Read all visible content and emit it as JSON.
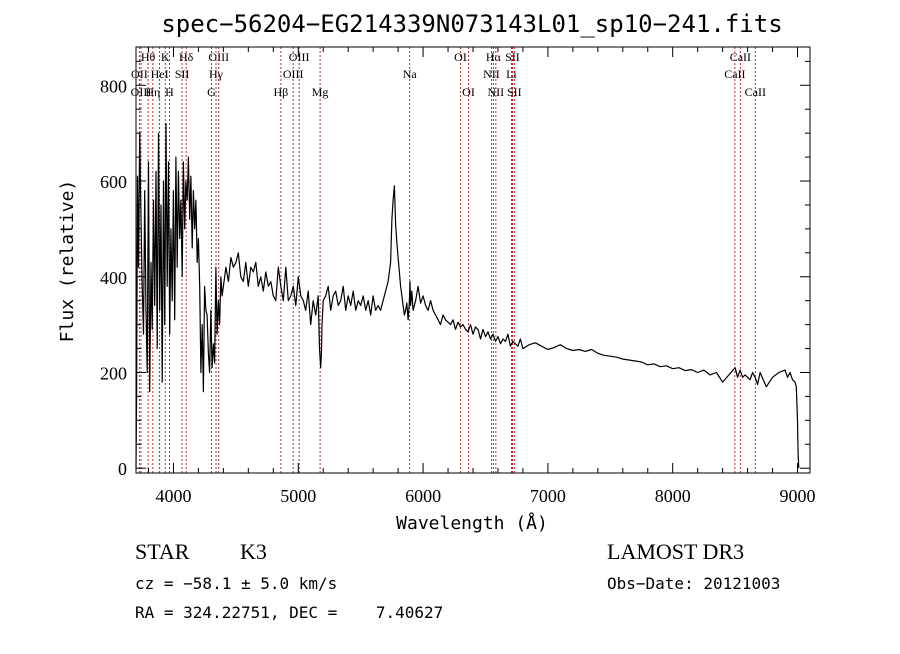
{
  "chart_data": {
    "type": "line",
    "title": "spec−56204−EG214339N073143L01_sp10−241.fits",
    "xlabel": "Wavelength (Å)",
    "ylabel": "Flux (relative)",
    "xlim": [
      3700,
      9100
    ],
    "ylim": [
      -10,
      880
    ],
    "xticks": [
      4000,
      5000,
      6000,
      7000,
      8000,
      9000
    ],
    "yticks": [
      0,
      200,
      400,
      600,
      800
    ],
    "series": [
      {
        "name": "spectrum",
        "x": [
          3700,
          3705,
          3712,
          3720,
          3730,
          3740,
          3750,
          3760,
          3770,
          3780,
          3790,
          3800,
          3810,
          3820,
          3830,
          3840,
          3850,
          3860,
          3870,
          3880,
          3890,
          3900,
          3910,
          3920,
          3930,
          3940,
          3950,
          3960,
          3970,
          3980,
          3990,
          4000,
          4010,
          4020,
          4030,
          4040,
          4050,
          4060,
          4070,
          4080,
          4090,
          4100,
          4110,
          4120,
          4130,
          4140,
          4150,
          4160,
          4170,
          4180,
          4190,
          4200,
          4210,
          4220,
          4230,
          4240,
          4250,
          4260,
          4270,
          4280,
          4290,
          4300,
          4310,
          4320,
          4330,
          4340,
          4350,
          4360,
          4370,
          4380,
          4390,
          4400,
          4420,
          4440,
          4460,
          4480,
          4500,
          4520,
          4540,
          4560,
          4580,
          4600,
          4620,
          4640,
          4660,
          4680,
          4700,
          4720,
          4740,
          4760,
          4780,
          4800,
          4820,
          4840,
          4860,
          4880,
          4900,
          4920,
          4940,
          4960,
          4980,
          5000,
          5020,
          5040,
          5060,
          5080,
          5100,
          5120,
          5140,
          5160,
          5170,
          5180,
          5185,
          5190,
          5200,
          5220,
          5240,
          5260,
          5280,
          5300,
          5320,
          5340,
          5360,
          5380,
          5400,
          5420,
          5440,
          5460,
          5480,
          5500,
          5520,
          5540,
          5560,
          5580,
          5600,
          5620,
          5640,
          5660,
          5680,
          5700,
          5720,
          5740,
          5750,
          5760,
          5770,
          5780,
          5790,
          5800,
          5810,
          5820,
          5830,
          5840,
          5850,
          5860,
          5870,
          5880,
          5890,
          5895,
          5900,
          5910,
          5920,
          5940,
          5960,
          5980,
          6000,
          6020,
          6040,
          6060,
          6080,
          6100,
          6120,
          6140,
          6160,
          6180,
          6200,
          6220,
          6240,
          6260,
          6280,
          6300,
          6320,
          6340,
          6360,
          6380,
          6400,
          6420,
          6440,
          6460,
          6480,
          6500,
          6520,
          6540,
          6560,
          6580,
          6600,
          6620,
          6640,
          6660,
          6680,
          6700,
          6720,
          6740,
          6760,
          6780,
          6800,
          6850,
          6900,
          6950,
          7000,
          7050,
          7100,
          7150,
          7200,
          7250,
          7300,
          7350,
          7400,
          7450,
          7500,
          7550,
          7600,
          7650,
          7700,
          7750,
          7800,
          7850,
          7900,
          7950,
          8000,
          8050,
          8100,
          8150,
          8200,
          8250,
          8300,
          8350,
          8400,
          8450,
          8500,
          8520,
          8540,
          8560,
          8580,
          8600,
          8620,
          8640,
          8660,
          8680,
          8700,
          8750,
          8800,
          8850,
          8900,
          8920,
          8940,
          8960,
          8980,
          8990,
          9000,
          9005,
          9010
        ],
        "y": [
          0,
          150,
          610,
          420,
          700,
          520,
          380,
          280,
          580,
          330,
          200,
          640,
          160,
          430,
          290,
          560,
          340,
          620,
          250,
          700,
          330,
          550,
          180,
          600,
          300,
          720,
          380,
          640,
          280,
          500,
          350,
          580,
          310,
          650,
          420,
          620,
          480,
          560,
          400,
          640,
          500,
          600,
          560,
          650,
          520,
          610,
          460,
          580,
          500,
          560,
          430,
          480,
          380,
          200,
          300,
          160,
          380,
          330,
          320,
          240,
          200,
          330,
          210,
          260,
          220,
          420,
          280,
          350,
          300,
          400,
          360,
          380,
          420,
          390,
          440,
          420,
          430,
          450,
          400,
          390,
          430,
          380,
          420,
          410,
          430,
          380,
          400,
          370,
          410,
          380,
          390,
          360,
          350,
          420,
          380,
          350,
          420,
          350,
          360,
          380,
          340,
          400,
          360,
          350,
          330,
          370,
          300,
          350,
          320,
          360,
          250,
          210,
          240,
          300,
          350,
          360,
          380,
          330,
          360,
          370,
          340,
          350,
          380,
          330,
          360,
          340,
          370,
          330,
          350,
          340,
          360,
          330,
          350,
          320,
          360,
          330,
          340,
          330,
          350,
          370,
          390,
          430,
          520,
          560,
          590,
          510,
          470,
          440,
          410,
          380,
          360,
          340,
          320,
          330,
          345,
          310,
          345,
          390,
          340,
          370,
          330,
          350,
          380,
          345,
          360,
          340,
          330,
          350,
          330,
          320,
          310,
          300,
          320,
          310,
          305,
          300,
          310,
          290,
          305,
          295,
          300,
          290,
          285,
          300,
          280,
          295,
          290,
          270,
          290,
          275,
          285,
          270,
          280,
          265,
          275,
          260,
          270,
          265,
          280,
          255,
          265,
          260,
          255,
          270,
          250,
          258,
          262,
          255,
          248,
          252,
          258,
          250,
          246,
          248,
          244,
          248,
          240,
          236,
          234,
          232,
          228,
          226,
          224,
          222,
          216,
          218,
          212,
          214,
          208,
          210,
          204,
          206,
          200,
          205,
          195,
          200,
          180,
          195,
          210,
          190,
          205,
          190,
          195,
          190,
          185,
          200,
          190,
          175,
          200,
          170,
          190,
          200,
          205,
          190,
          200,
          185,
          180,
          170,
          100,
          30,
          0
        ]
      }
    ],
    "lines": [
      {
        "label": "Hθ",
        "x": 3797,
        "row": 1
      },
      {
        "label": "OII",
        "x": 3727,
        "row": 2
      },
      {
        "label": "OIII",
        "x": 3740,
        "row": 3
      },
      {
        "label": "Hη",
        "x": 3835,
        "row": 3
      },
      {
        "label": "HeI",
        "x": 3889,
        "row": 2
      },
      {
        "label": "K",
        "x": 3934,
        "row": 1
      },
      {
        "label": "H",
        "x": 3968,
        "row": 3
      },
      {
        "label": "SII",
        "x": 4069,
        "row": 2
      },
      {
        "label": "Hδ",
        "x": 4102,
        "row": 1
      },
      {
        "label": "OIII",
        "x": 4363,
        "row": 1
      },
      {
        "label": "Hγ",
        "x": 4341,
        "row": 2
      },
      {
        "label": "G",
        "x": 4305,
        "row": 3
      },
      {
        "label": "Hβ",
        "x": 4861,
        "row": 3
      },
      {
        "label": "OIII",
        "x": 4959,
        "row": 2
      },
      {
        "label": "OIII",
        "x": 5007,
        "row": 1
      },
      {
        "label": "Mg",
        "x": 5175,
        "row": 3
      },
      {
        "label": "Na",
        "x": 5893,
        "row": 2
      },
      {
        "label": "OI",
        "x": 6300,
        "row": 1
      },
      {
        "label": "OI",
        "x": 6364,
        "row": 3
      },
      {
        "label": "NII",
        "x": 6548,
        "row": 2
      },
      {
        "label": "Hα",
        "x": 6563,
        "row": 1
      },
      {
        "label": "NII",
        "x": 6583,
        "row": 3
      },
      {
        "label": "Li",
        "x": 6708,
        "row": 2
      },
      {
        "label": "SII",
        "x": 6716,
        "row": 1
      },
      {
        "label": "SII",
        "x": 6731,
        "row": 3
      },
      {
        "label": "CaII",
        "x": 8498,
        "row": 2
      },
      {
        "label": "CaII",
        "x": 8542,
        "row": 1
      },
      {
        "label": "CaII",
        "x": 8662,
        "row": 3
      }
    ]
  },
  "info": {
    "class": "STAR",
    "subclass": "K3",
    "survey": "LAMOST DR3",
    "redshift": "cz = −58.1 ± 5.0 km/s",
    "obs_date": "Obs−Date: 20121003",
    "coords": "RA = 324.22751, DEC =    7.40627"
  }
}
